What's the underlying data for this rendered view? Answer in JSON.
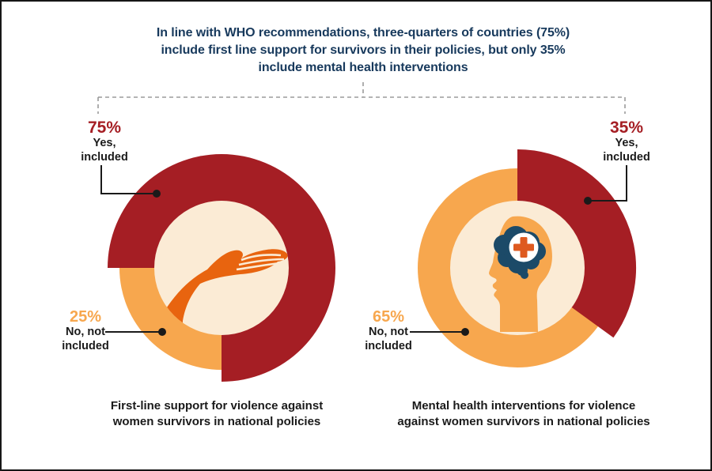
{
  "title": {
    "lines": [
      "In line with WHO recommendations, three-quarters of countries (75%)",
      "include first line support for survivors in their policies, but only 35%",
      "include mental health interventions"
    ]
  },
  "colors": {
    "red": "#A51E24",
    "orange": "#F7A74E",
    "cream": "#FBEBD5",
    "navy_text": "#17395C",
    "hand": "#E8640F",
    "brain": "#1C4A68",
    "cross": "#DE5A20",
    "connector": "#1A1A1A",
    "dash": "#9B9B9B"
  },
  "charts": {
    "left": {
      "yes_pct": "75%",
      "yes_line1": "Yes,",
      "yes_line2": "included",
      "no_pct": "25%",
      "no_line1": "No, not",
      "no_line2": "included",
      "caption_line1": "First-line support for violence against",
      "caption_line2": "women survivors in national policies"
    },
    "right": {
      "yes_pct": "35%",
      "yes_line1": "Yes,",
      "yes_line2": "included",
      "no_pct": "65%",
      "no_line1": "No, not",
      "no_line2": "included",
      "caption_line1": "Mental health interventions for violence",
      "caption_line2": "against women survivors in national policies"
    }
  },
  "chart_data": [
    {
      "type": "pie",
      "title": "First-line support for violence against women survivors in national policies",
      "labels": [
        "Yes, included",
        "No, not included"
      ],
      "values": [
        75,
        25
      ],
      "unit": "percent",
      "colors": [
        "#A51E24",
        "#F7A74E"
      ],
      "donut_hole_color": "#FBEBD5",
      "center_icon": "open-hand",
      "emphasized_slice": "Yes, included",
      "start_angle_of_yes_slice_deg_clockwise_from_north": 270
    },
    {
      "type": "pie",
      "title": "Mental health interventions for violence against women survivors in national policies",
      "labels": [
        "Yes, included",
        "No, not included"
      ],
      "values": [
        35,
        65
      ],
      "unit": "percent",
      "colors": [
        "#A51E24",
        "#F7A74E"
      ],
      "donut_hole_color": "#FBEBD5",
      "center_icon": "head-profile-with-brain-and-medical-cross",
      "emphasized_slice": "Yes, included",
      "start_angle_of_yes_slice_deg_clockwise_from_north": 0
    }
  ]
}
